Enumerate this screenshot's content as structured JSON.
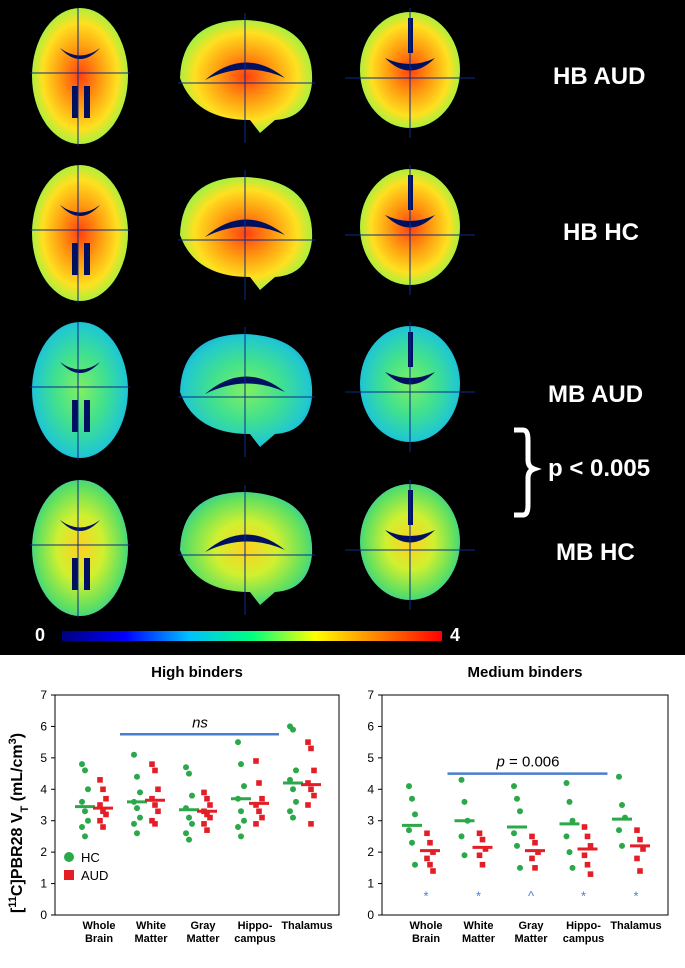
{
  "panel_top": {
    "row_labels": [
      "HB AUD",
      "HB HC",
      "MB AUD",
      "MB HC"
    ],
    "row_tints": [
      "hot",
      "hot",
      "cool",
      "mid"
    ],
    "significance": "p < 0.005",
    "colorbar": {
      "min": "0",
      "max": "4",
      "colors": [
        "#000080",
        "#0000ff",
        "#00bfff",
        "#00ff80",
        "#ffff00",
        "#ff8000",
        "#ff0000"
      ]
    }
  },
  "chart_data": [
    {
      "type": "scatter",
      "title": "High binders",
      "ylabel": "[11C]PBR28 VT (mL/cm3)",
      "ylabel_parts": {
        "bracket_open": "[",
        "iso": "11",
        "tracer": "C]PBR28 V",
        "sub": "T",
        "unit": " (mL/cm",
        "unit_sup": "3",
        "close": ")"
      },
      "ylim": [
        0,
        7
      ],
      "yticks": [
        "0",
        "1",
        "2",
        "3",
        "4",
        "5",
        "6",
        "7"
      ],
      "categories": [
        "Whole Brain",
        "White Matter",
        "Gray Matter",
        "Hippo- campus",
        "Thalamus"
      ],
      "category_lines": [
        [
          "Whole",
          "Brain"
        ],
        [
          "White",
          "Matter"
        ],
        [
          "Gray",
          "Matter"
        ],
        [
          "Hippo-",
          "campus"
        ],
        [
          "Thalamus",
          ""
        ]
      ],
      "legend": [
        {
          "name": "HC",
          "color": "#2aa84a",
          "marker": "circle"
        },
        {
          "name": "AUD",
          "color": "#e41e26",
          "marker": "square"
        }
      ],
      "series": [
        {
          "name": "HC",
          "means": [
            3.45,
            3.6,
            3.35,
            3.7,
            4.2
          ],
          "points": [
            [
              4.8,
              4.6,
              4.0,
              3.6,
              3.3,
              3.0,
              2.8,
              2.5
            ],
            [
              5.1,
              4.4,
              3.9,
              3.6,
              3.4,
              3.1,
              2.9,
              2.6
            ],
            [
              4.7,
              4.5,
              3.8,
              3.4,
              3.1,
              2.9,
              2.6,
              2.4
            ],
            [
              5.5,
              4.8,
              4.1,
              3.7,
              3.3,
              3.0,
              2.8,
              2.5
            ],
            [
              6.0,
              5.9,
              4.6,
              4.3,
              4.0,
              3.6,
              3.3,
              3.1
            ]
          ]
        },
        {
          "name": "AUD",
          "means": [
            3.4,
            3.65,
            3.3,
            3.55,
            4.15
          ],
          "points": [
            [
              4.3,
              4.0,
              3.7,
              3.5,
              3.3,
              3.2,
              3.0,
              2.8
            ],
            [
              4.8,
              4.6,
              4.0,
              3.7,
              3.5,
              3.3,
              3.0,
              2.9
            ],
            [
              3.9,
              3.7,
              3.5,
              3.3,
              3.2,
              3.1,
              2.9,
              2.7
            ],
            [
              4.9,
              4.2,
              3.7,
              3.5,
              3.3,
              3.1,
              2.9
            ],
            [
              5.5,
              5.3,
              4.6,
              4.2,
              4.0,
              3.8,
              3.5,
              2.9
            ]
          ]
        }
      ],
      "annotation": {
        "text": "ns",
        "from_category": 1,
        "to_category": 3,
        "y": 5.75
      },
      "stars": []
    },
    {
      "type": "scatter",
      "title": "Medium binders",
      "ylim": [
        0,
        7
      ],
      "yticks": [
        "0",
        "1",
        "2",
        "3",
        "4",
        "5",
        "6",
        "7"
      ],
      "categories": [
        "Whole Brain",
        "White Matter",
        "Gray Matter",
        "Hippo- campus",
        "Thalamus"
      ],
      "category_lines": [
        [
          "Whole",
          "Brain"
        ],
        [
          "White",
          "Matter"
        ],
        [
          "Gray",
          "Matter"
        ],
        [
          "Hippo-",
          "campus"
        ],
        [
          "Thalamus",
          ""
        ]
      ],
      "series": [
        {
          "name": "HC",
          "means": [
            2.85,
            3.0,
            2.8,
            2.9,
            3.05
          ],
          "points": [
            [
              4.1,
              3.7,
              3.2,
              2.7,
              2.3,
              1.6
            ],
            [
              4.3,
              3.6,
              3.0,
              2.5,
              1.9
            ],
            [
              4.1,
              3.7,
              3.3,
              2.6,
              2.2,
              1.5
            ],
            [
              4.2,
              3.6,
              3.0,
              2.5,
              2.0,
              1.5
            ],
            [
              4.4,
              3.5,
              3.1,
              2.7,
              2.2
            ]
          ]
        },
        {
          "name": "AUD",
          "means": [
            2.05,
            2.15,
            2.05,
            2.1,
            2.2
          ],
          "points": [
            [
              2.6,
              2.3,
              2.0,
              1.8,
              1.6,
              1.4
            ],
            [
              2.6,
              2.4,
              2.1,
              1.9,
              1.6
            ],
            [
              2.5,
              2.3,
              2.0,
              1.8,
              1.5
            ],
            [
              2.8,
              2.5,
              2.2,
              1.9,
              1.6,
              1.3
            ],
            [
              2.7,
              2.4,
              2.1,
              1.8,
              1.4
            ]
          ]
        }
      ],
      "annotation": {
        "text": "p = 0.006",
        "italic_part": "p",
        "rest": " = 0.006",
        "from_category": 1,
        "to_category": 3,
        "y": 4.5
      },
      "stars": [
        "*",
        "*",
        "^",
        "*",
        "*"
      ],
      "star_y": 0.65
    }
  ]
}
